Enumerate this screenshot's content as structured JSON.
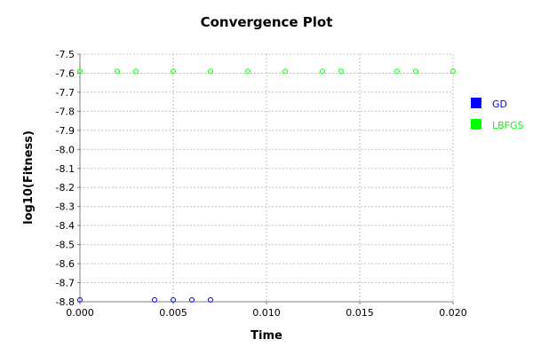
{
  "chart_data": {
    "type": "scatter",
    "title": "Convergence Plot",
    "xlabel": "Time",
    "ylabel": "log10(Fitness)",
    "xlim": [
      0,
      0.02
    ],
    "ylim": [
      -8.8,
      -7.5
    ],
    "xticks": [
      0.0,
      0.005,
      0.01,
      0.015,
      0.02
    ],
    "xtick_labels": [
      "0.000",
      "0.005",
      "0.010",
      "0.015",
      "0.020"
    ],
    "yticks": [
      -7.5,
      -7.6,
      -7.7,
      -7.8,
      -7.9,
      -8.0,
      -8.1,
      -8.2,
      -8.3,
      -8.4,
      -8.5,
      -8.6,
      -8.7,
      -8.8
    ],
    "ytick_labels": [
      "-7.5",
      "-7.6",
      "-7.7",
      "-7.8",
      "-7.9",
      "-8.0",
      "-8.1",
      "-8.2",
      "-8.3",
      "-8.4",
      "-8.5",
      "-8.6",
      "-8.7",
      "-8.8"
    ],
    "grid": true,
    "legend_position": "right",
    "series": [
      {
        "name": "GD",
        "color": "#0000ff",
        "x": [
          0.0,
          0.004,
          0.005,
          0.006,
          0.007
        ],
        "y": [
          -8.79,
          -8.79,
          -8.79,
          -8.79,
          -8.79
        ]
      },
      {
        "name": "LBFGS",
        "color": "#00ff00",
        "x": [
          0.0,
          0.002,
          0.003,
          0.005,
          0.007,
          0.009,
          0.011,
          0.013,
          0.014,
          0.017,
          0.018,
          0.02
        ],
        "y": [
          -7.59,
          -7.59,
          -7.59,
          -7.59,
          -7.59,
          -7.59,
          -7.59,
          -7.59,
          -7.59,
          -7.59,
          -7.59,
          -7.59
        ]
      }
    ]
  }
}
